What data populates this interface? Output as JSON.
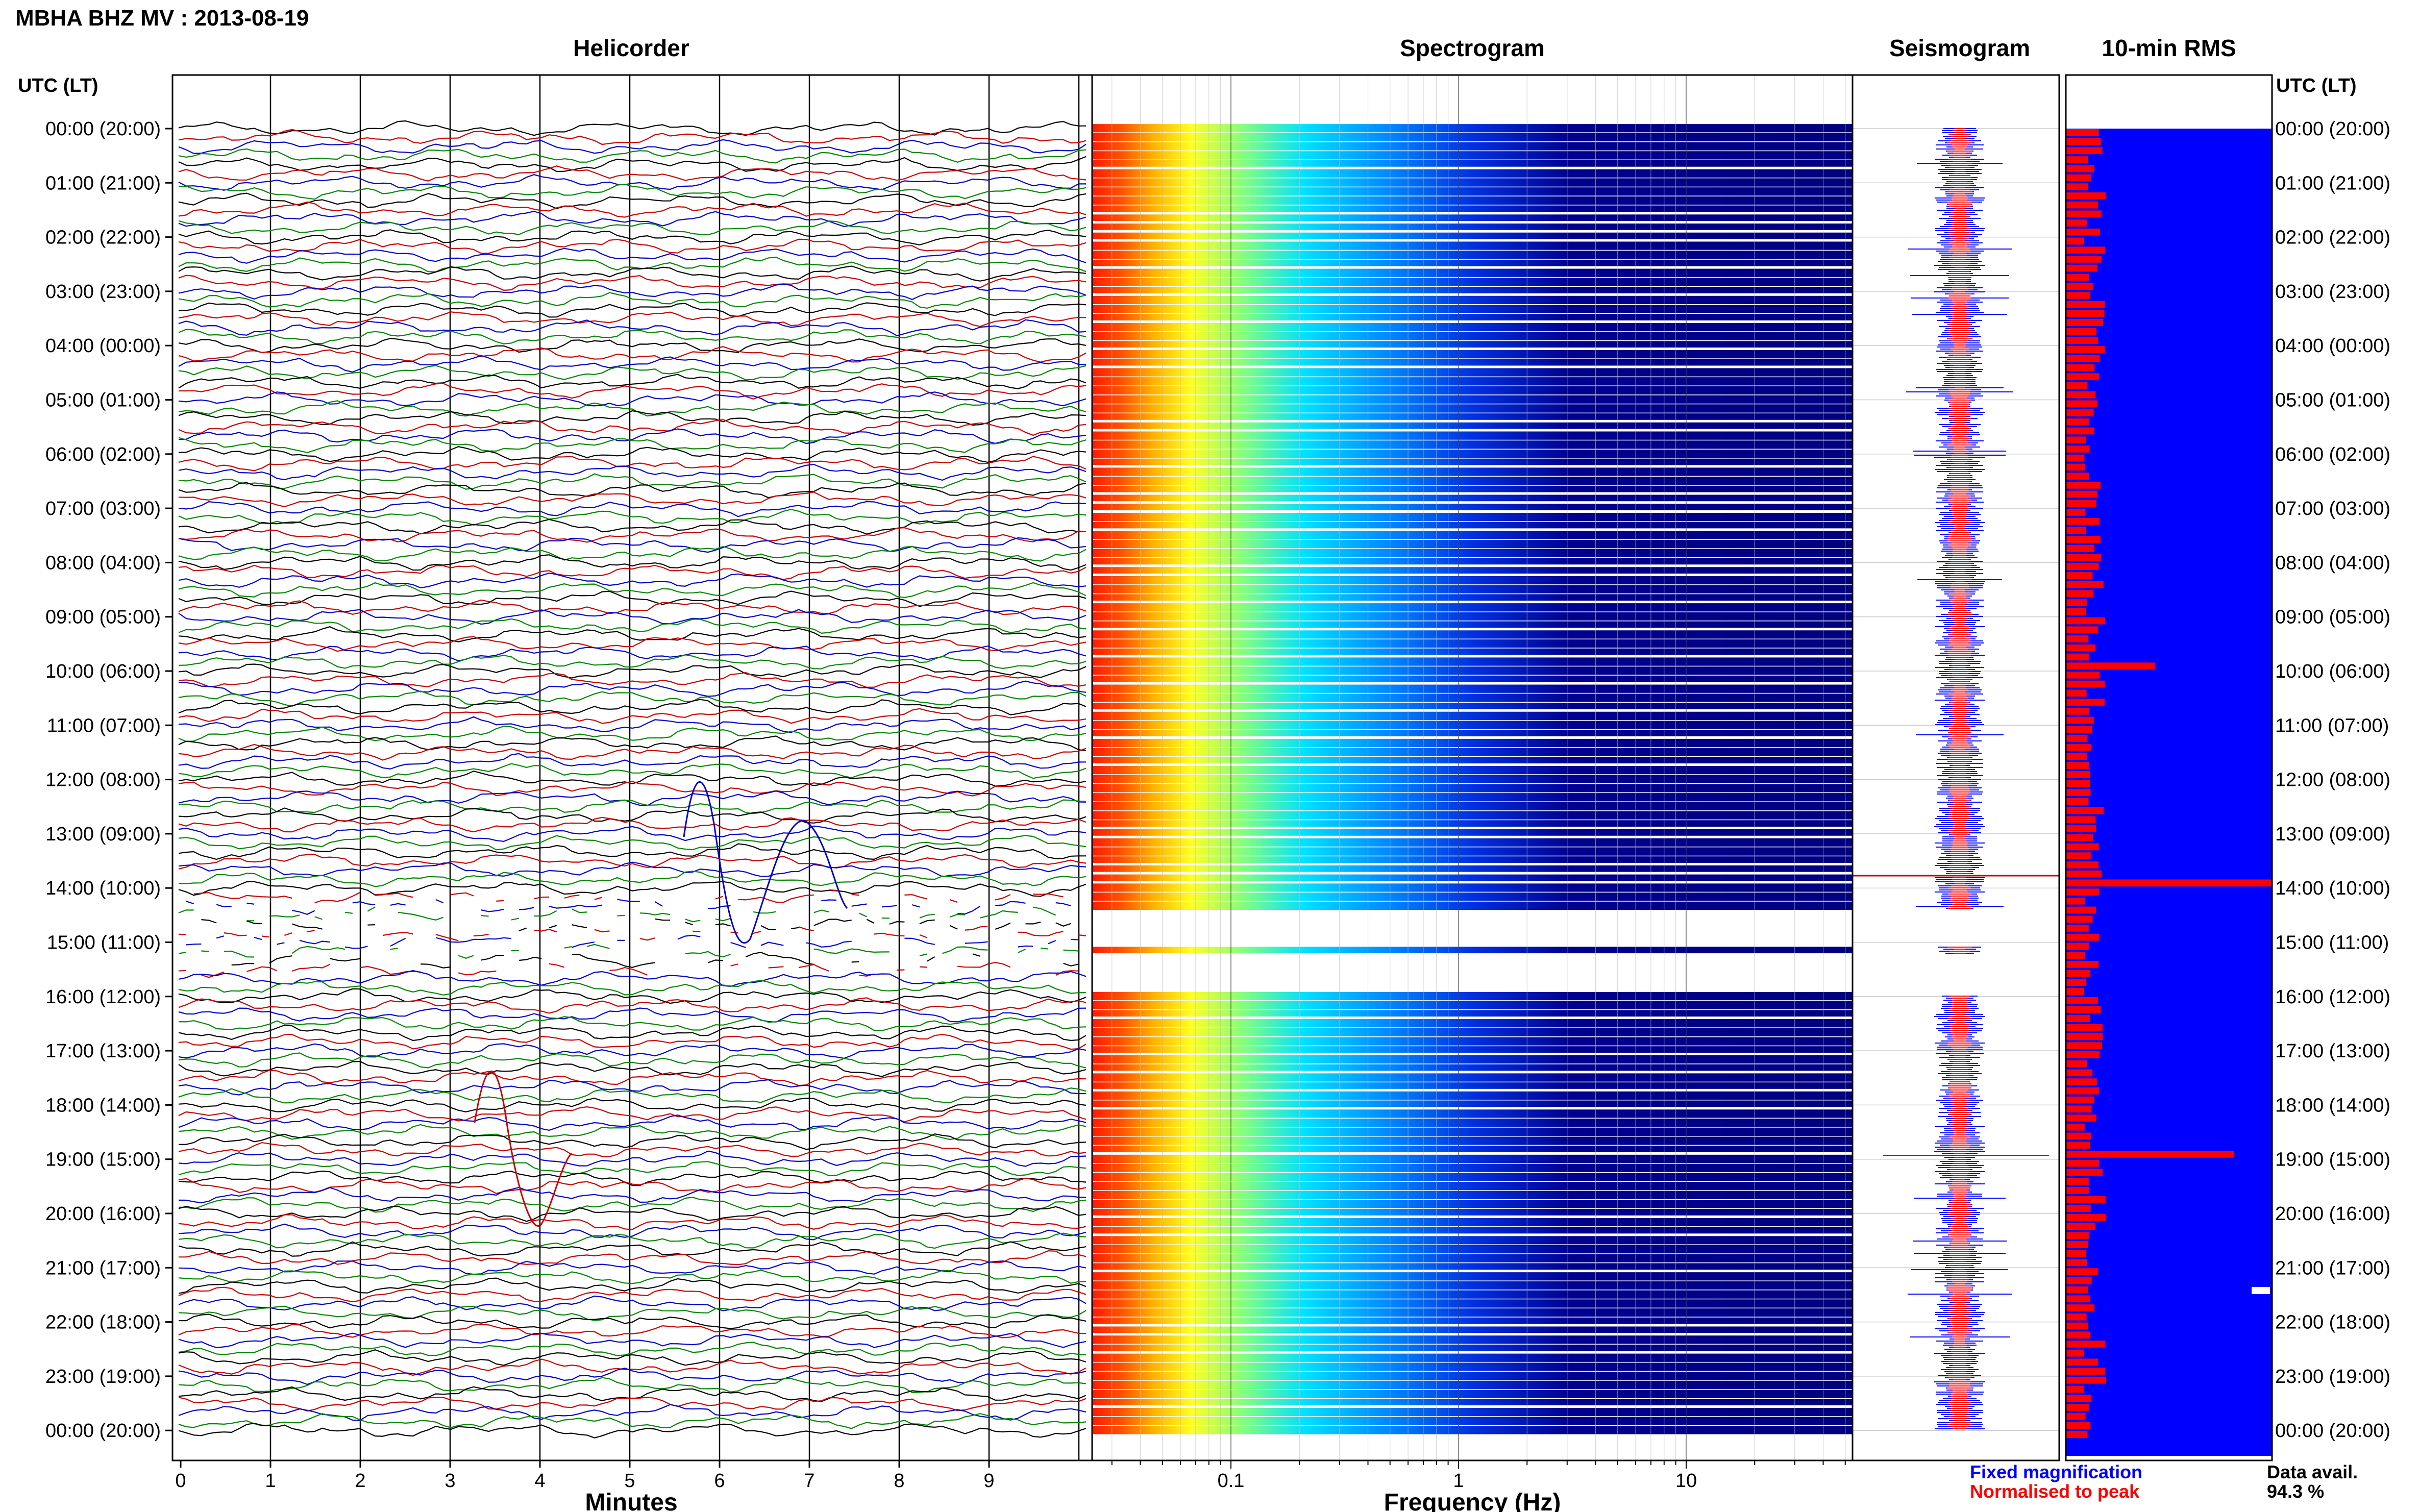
{
  "title": "MBHA BHZ MV : 2013-08-19",
  "panels": {
    "helicorder": "Helicorder",
    "spectrogram": "Spectrogram",
    "seismogram": "Seismogram",
    "rms": "10-min RMS"
  },
  "time_axis_header": "UTC (LT)",
  "time_labels": [
    "00:00 (20:00)",
    "01:00 (21:00)",
    "02:00 (22:00)",
    "03:00 (23:00)",
    "04:00 (00:00)",
    "05:00 (01:00)",
    "06:00 (02:00)",
    "07:00 (03:00)",
    "08:00 (04:00)",
    "09:00 (05:00)",
    "10:00 (06:00)",
    "11:00 (07:00)",
    "12:00 (08:00)",
    "13:00 (09:00)",
    "14:00 (10:00)",
    "15:00 (11:00)",
    "16:00 (12:00)",
    "17:00 (13:00)",
    "18:00 (14:00)",
    "19:00 (15:00)",
    "20:00 (16:00)",
    "21:00 (17:00)",
    "22:00 (18:00)",
    "23:00 (19:00)",
    "00:00 (20:00)"
  ],
  "helicorder_xlabel": "Minutes",
  "minute_ticks": [
    "0",
    "1",
    "2",
    "3",
    "4",
    "5",
    "6",
    "7",
    "8",
    "9"
  ],
  "spectrogram_xlabel": "Frequency (Hz)",
  "freq_ticks": [
    "0.1",
    "1",
    "10"
  ],
  "legend": {
    "fixed": "Fixed magnification",
    "normalised": "Normalised to peak",
    "fixed_color": "#0000ff",
    "normalised_color": "#ff0000"
  },
  "data_avail_label": "Data avail.",
  "data_avail_value": "94.3 %",
  "colors": {
    "trace_cycle": [
      "#000000",
      "#cc0000",
      "#0000cc",
      "#008800"
    ],
    "spectrogram_low": "#000080",
    "rms_background": "#0000ff",
    "rms_bar": "#ff0000"
  },
  "chart_data": {
    "type": "heatmap",
    "title": "MBHA BHZ MV : 2013-08-19",
    "helicorder": {
      "xlabel": "Minutes",
      "xlim": [
        0,
        10
      ],
      "rows_per_hour": 6
    },
    "spectrogram": {
      "xlabel": "Frequency (Hz)",
      "xscale": "log",
      "xlim": [
        0.025,
        50
      ]
    },
    "rms": {
      "title": "10-min RMS",
      "event_peaks_utc": [
        "13:50",
        "18:50"
      ]
    },
    "data_availability_percent": 94.3,
    "gaps_utc": [
      [
        "14:10",
        "14:50"
      ],
      [
        "14:50",
        "15:40"
      ]
    ]
  }
}
